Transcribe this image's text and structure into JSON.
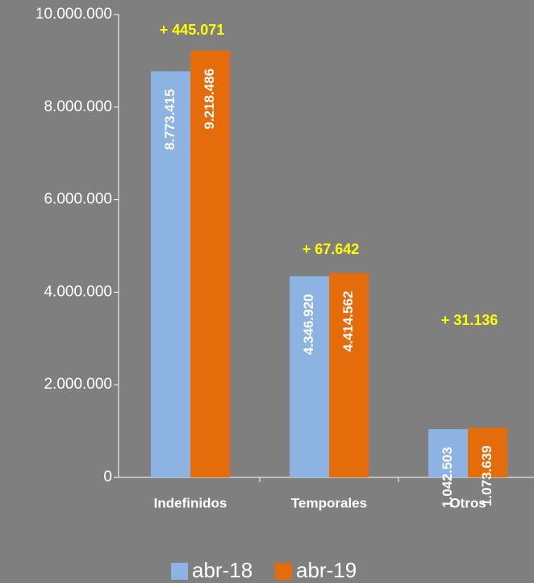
{
  "chart_data": {
    "type": "bar",
    "categories": [
      "Indefinidos",
      "Temporales",
      "Otros"
    ],
    "series": [
      {
        "name": "abr-18",
        "color": "#8db3e2",
        "values": [
          8773415,
          4346920,
          1042503
        ],
        "value_labels": [
          "8.773.415",
          "4.346.920",
          "1.042.503"
        ]
      },
      {
        "name": "abr-19",
        "color": "#e46c0a",
        "values": [
          9218486,
          4414562,
          1073639
        ],
        "value_labels": [
          "9.218.486",
          "4.414.562",
          "1.073.639"
        ]
      }
    ],
    "annotations": [
      "+ 445.071",
      "+ 67.642",
      "+ 31.136"
    ],
    "ylim": [
      0,
      10000000
    ],
    "yticks": [
      0,
      {
        "value": 2000000,
        "label": "2.000.000"
      },
      {
        "value": 4000000,
        "label": "4.000.000"
      },
      {
        "value": 6000000,
        "label": "6.000.000"
      },
      {
        "value": 8000000,
        "label": "8.000.000"
      },
      {
        "value": 10000000,
        "label": "10.000.000"
      }
    ],
    "legend": "bottom"
  }
}
